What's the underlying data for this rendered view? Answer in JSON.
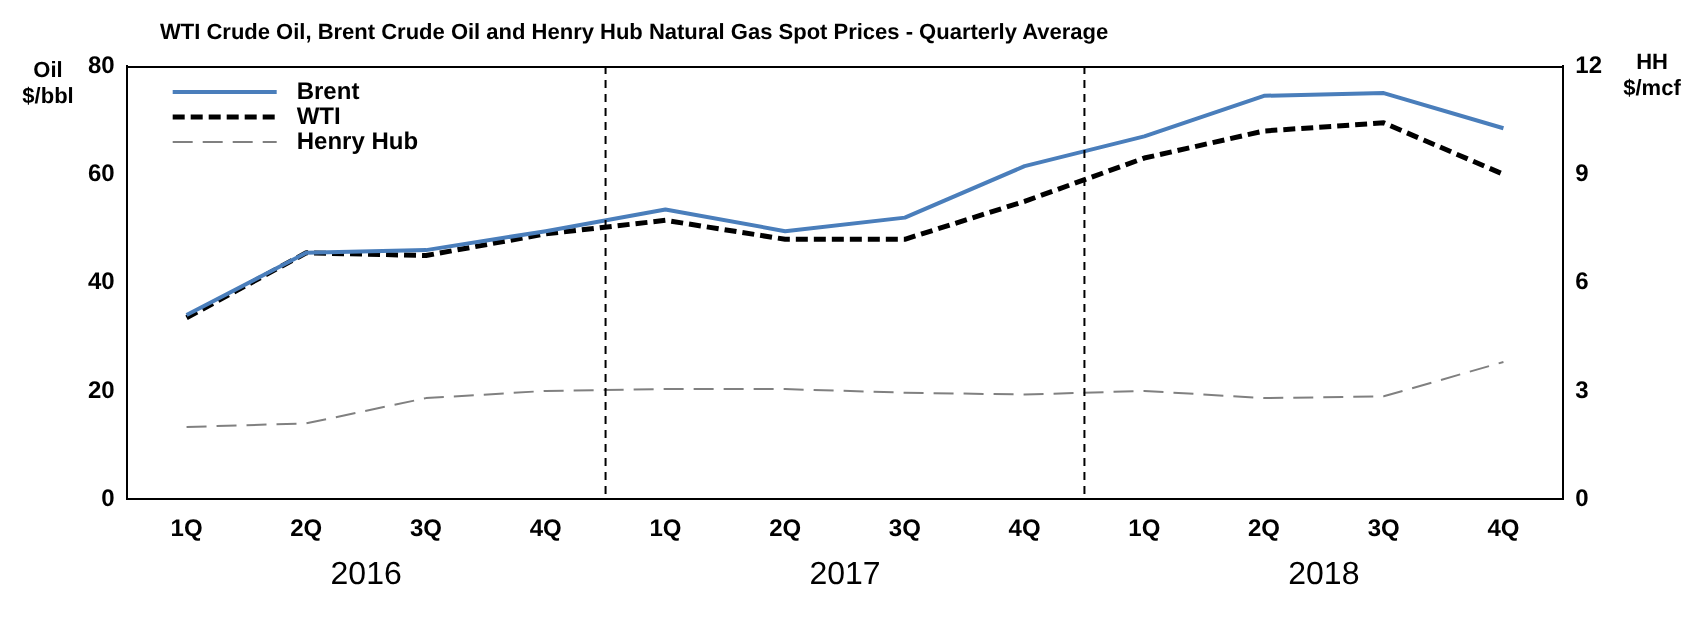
{
  "chart_data": {
    "type": "line",
    "title": "WTI Crude Oil, Brent Crude Oil and Henry Hub Natural Gas Spot Prices - Quarterly Average",
    "ylabel": "Oil $/bbl",
    "y2label": "HH $/mcf",
    "categories": [
      "1Q",
      "2Q",
      "3Q",
      "4Q",
      "1Q",
      "2Q",
      "3Q",
      "4Q",
      "1Q",
      "2Q",
      "3Q",
      "4Q"
    ],
    "annotations": [
      "2016",
      "2017",
      "2018"
    ],
    "series": [
      {
        "name": "Brent",
        "color": "#4a7ebb",
        "line_style": "solid",
        "values": [
          34,
          45.5,
          46,
          49.5,
          53.5,
          49.5,
          52,
          61.5,
          67,
          74.5,
          75,
          68.5
        ]
      },
      {
        "name": "WTI",
        "color": "#000000",
        "line_style": "dashed",
        "values": [
          33.5,
          45.5,
          45,
          49,
          51.5,
          48,
          48,
          55,
          63,
          68,
          69.5,
          60
        ]
      },
      {
        "name": "Henry Hub",
        "color": "#808080",
        "line_style": "dashed",
        "axis": "y2",
        "values": [
          2.0,
          2.1,
          2.8,
          3.0,
          3.05,
          3.05,
          2.95,
          2.9,
          3.0,
          2.8,
          2.85,
          3.8
        ]
      }
    ],
    "ylim": [
      0,
      80
    ],
    "yticks": [
      0,
      20,
      40,
      60,
      80
    ],
    "y2lim": [
      0,
      12
    ],
    "y2ticks": [
      0,
      3,
      6,
      9,
      12
    ],
    "grid": false,
    "legend": "top left",
    "marker": "none"
  }
}
